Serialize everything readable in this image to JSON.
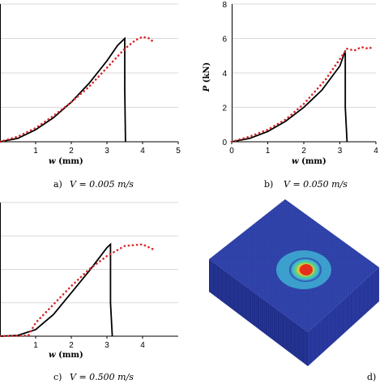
{
  "chart_data": [
    {
      "type": "line",
      "panel": "a",
      "caption_prefix": "a)",
      "caption_math": "V = 0.005 m/s",
      "xlabel_var": "w",
      "xlabel_unit": " (mm)",
      "ylabel_var": "",
      "ylabel_unit": "",
      "xlim": [
        0,
        5
      ],
      "ylim": [
        0,
        8
      ],
      "xticks": [
        1,
        2,
        3,
        4,
        5
      ],
      "yticks": [],
      "series": [
        {
          "style": "solid",
          "color": "#000000",
          "x": [
            0,
            0.5,
            1.0,
            1.5,
            2.0,
            2.5,
            3.0,
            3.3,
            3.5,
            3.5,
            3.52
          ],
          "y": [
            0,
            0.2,
            0.7,
            1.4,
            2.3,
            3.4,
            4.7,
            5.6,
            6.0,
            3.0,
            0
          ]
        },
        {
          "style": "dotted",
          "color": "#d62728",
          "x": [
            0,
            0.5,
            1.0,
            1.5,
            2.0,
            2.5,
            3.0,
            3.5,
            3.8,
            4.0,
            4.2,
            4.3
          ],
          "y": [
            0,
            0.3,
            0.8,
            1.5,
            2.3,
            3.2,
            4.3,
            5.4,
            5.9,
            6.1,
            6.0,
            5.8
          ]
        }
      ]
    },
    {
      "type": "line",
      "panel": "b",
      "caption_prefix": "b)",
      "caption_math": "V = 0.050 m/s",
      "xlabel_var": "w",
      "xlabel_unit": " (mm)",
      "ylabel_var": "P",
      "ylabel_unit": " (kN)",
      "xlim": [
        0,
        4
      ],
      "ylim": [
        0,
        8
      ],
      "xticks": [
        0,
        1,
        2,
        3,
        4
      ],
      "yticks": [
        0,
        2,
        4,
        6,
        8
      ],
      "series": [
        {
          "style": "solid",
          "color": "#000000",
          "x": [
            0,
            0.5,
            1.0,
            1.5,
            2.0,
            2.5,
            3.0,
            3.15,
            3.15,
            3.2
          ],
          "y": [
            0,
            0.2,
            0.6,
            1.2,
            2.0,
            3.0,
            4.4,
            5.3,
            2.0,
            0
          ]
        },
        {
          "style": "dotted",
          "color": "#d62728",
          "x": [
            0,
            0.5,
            1.0,
            1.5,
            2.0,
            2.3,
            2.6,
            3.0,
            3.2,
            3.4,
            3.6,
            3.8,
            3.9
          ],
          "y": [
            0,
            0.3,
            0.7,
            1.3,
            2.2,
            2.9,
            3.6,
            4.8,
            5.4,
            5.3,
            5.5,
            5.4,
            5.5
          ]
        }
      ]
    },
    {
      "type": "line",
      "panel": "c",
      "caption_prefix": "c)",
      "caption_math": "V = 0.500 m/s",
      "xlabel_var": "w",
      "xlabel_unit": " (mm)",
      "ylabel_var": "",
      "ylabel_unit": "",
      "xlim": [
        0,
        5
      ],
      "ylim": [
        0,
        8
      ],
      "xticks": [
        1,
        2,
        3,
        4
      ],
      "yticks": [],
      "series": [
        {
          "style": "solid",
          "color": "#000000",
          "x": [
            0,
            0.5,
            1.0,
            1.5,
            2.0,
            2.5,
            3.0,
            3.1,
            3.1,
            3.15
          ],
          "y": [
            0,
            0.05,
            0.4,
            1.3,
            2.6,
            3.9,
            5.3,
            5.5,
            2.0,
            0
          ]
        },
        {
          "style": "dotted",
          "color": "#d62728",
          "x": [
            0,
            0.8,
            1.0,
            1.5,
            2.0,
            2.5,
            3.0,
            3.5,
            4.0,
            4.3
          ],
          "y": [
            0,
            0.05,
            0.8,
            1.9,
            3.0,
            4.0,
            4.8,
            5.4,
            5.5,
            5.2
          ]
        }
      ]
    }
  ],
  "figure_d": {
    "caption_prefix": "d)",
    "colors": {
      "plate": "#2d3fa6",
      "side": "#1f2e8a",
      "mesh": "#4b5fc4",
      "halo": "#3fb7d6",
      "ring": "#5fd07a",
      "mid": "#f0c93a",
      "core": "#e52f1e"
    }
  }
}
